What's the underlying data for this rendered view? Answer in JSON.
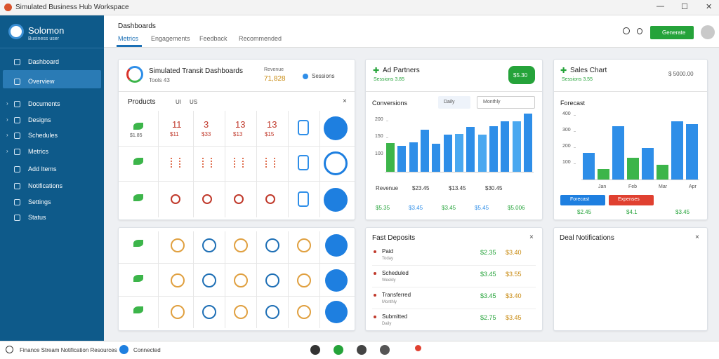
{
  "window": {
    "title": "Simulated Business Hub Workspace"
  },
  "sidebar": {
    "user": "Solomon",
    "subtitle": "Business user",
    "items": [
      "Dashboard",
      "Overview",
      "Documents",
      "Designs",
      "Schedules",
      "Metrics",
      "Add Items",
      "Notifications",
      "Settings",
      "Status"
    ]
  },
  "header": {
    "title": "Dashboards",
    "tabs": [
      "Metrics",
      "Engagements",
      "Feedback",
      "Recommended"
    ],
    "button": "Generate"
  },
  "products": {
    "title": "Simulated Transit Dashboards",
    "subtitle": "Tools 43",
    "kpi_label": "Revenue",
    "kpi_value": "71,828",
    "badge": "Sessions",
    "section": "Products",
    "tabs": [
      "UI",
      "US"
    ],
    "row": [
      "11",
      "3",
      "13",
      "13"
    ],
    "row_sub": [
      "$11",
      "$33",
      "$13",
      "$15"
    ],
    "label": "$1.85"
  },
  "ad": {
    "title": "Ad Partners",
    "subtitle": "Sessions 3.85",
    "badge": "$5.30",
    "chart_title": "Conversions",
    "select": "Monthly",
    "selector": "Daily",
    "chart": {
      "type": "bar",
      "ylim": [
        50,
        225
      ],
      "yticks": [
        100,
        150,
        200
      ],
      "values": [
        135,
        127,
        137,
        173,
        133,
        160,
        162,
        181,
        160,
        183,
        198,
        198,
        221
      ],
      "colors": [
        "#3cb54a",
        "#2e8ee8",
        "#2e8ee8",
        "#2e8ee8",
        "#2e8ee8",
        "#2e8ee8",
        "#4aa8f0",
        "#2e8ee8",
        "#4aa8f0",
        "#2e8ee8",
        "#2e8ee8",
        "#4aa8f0",
        "#2e8ee8"
      ]
    },
    "footer_labels": [
      "Revenue",
      "$23.45",
      "$13.45",
      "$30.45"
    ],
    "footer_values": [
      "$5.35",
      "$3.45",
      "$3.45",
      "$5.45",
      "$5.006"
    ]
  },
  "sales": {
    "title": "Sales Chart",
    "subtitle": "Sessions 3.55",
    "right": "$ 5000.00",
    "chart_title": "Forecast",
    "chart": {
      "type": "bar",
      "ylim": [
        0,
        400
      ],
      "yticks": [
        100,
        200,
        300,
        400
      ],
      "values": [
        165,
        65,
        330,
        135,
        196,
        91,
        361,
        343
      ],
      "colors": [
        "#2e8ee8",
        "#3cb54a",
        "#2e8ee8",
        "#3cb54a",
        "#2e8ee8",
        "#3cb54a",
        "#2e8ee8",
        "#2e8ee8"
      ]
    },
    "x_labels": [
      "Jan",
      "Feb",
      "Mar",
      "Apr"
    ],
    "buttons": [
      "Forecast",
      "Expenses"
    ],
    "values": [
      "$2.45",
      "$4.1",
      "$3.45"
    ]
  },
  "deposits": {
    "title": "Fast Deposits",
    "rows": [
      {
        "name": "Paid",
        "sub": "Today",
        "a": "$2.35",
        "b": "$3.40"
      },
      {
        "name": "Scheduled",
        "sub": "Weekly",
        "a": "$3.45",
        "b": "$3.55"
      },
      {
        "name": "Transferred",
        "sub": "Monthly",
        "a": "$3.45",
        "b": "$3.40"
      },
      {
        "name": "Submitted",
        "sub": "Daily",
        "a": "$2.75",
        "b": "$3.45"
      }
    ]
  },
  "notifications": {
    "title": "Deal Notifications"
  },
  "status": {
    "left": "Finance Stream Notification Resources",
    "connected": "Connected"
  }
}
